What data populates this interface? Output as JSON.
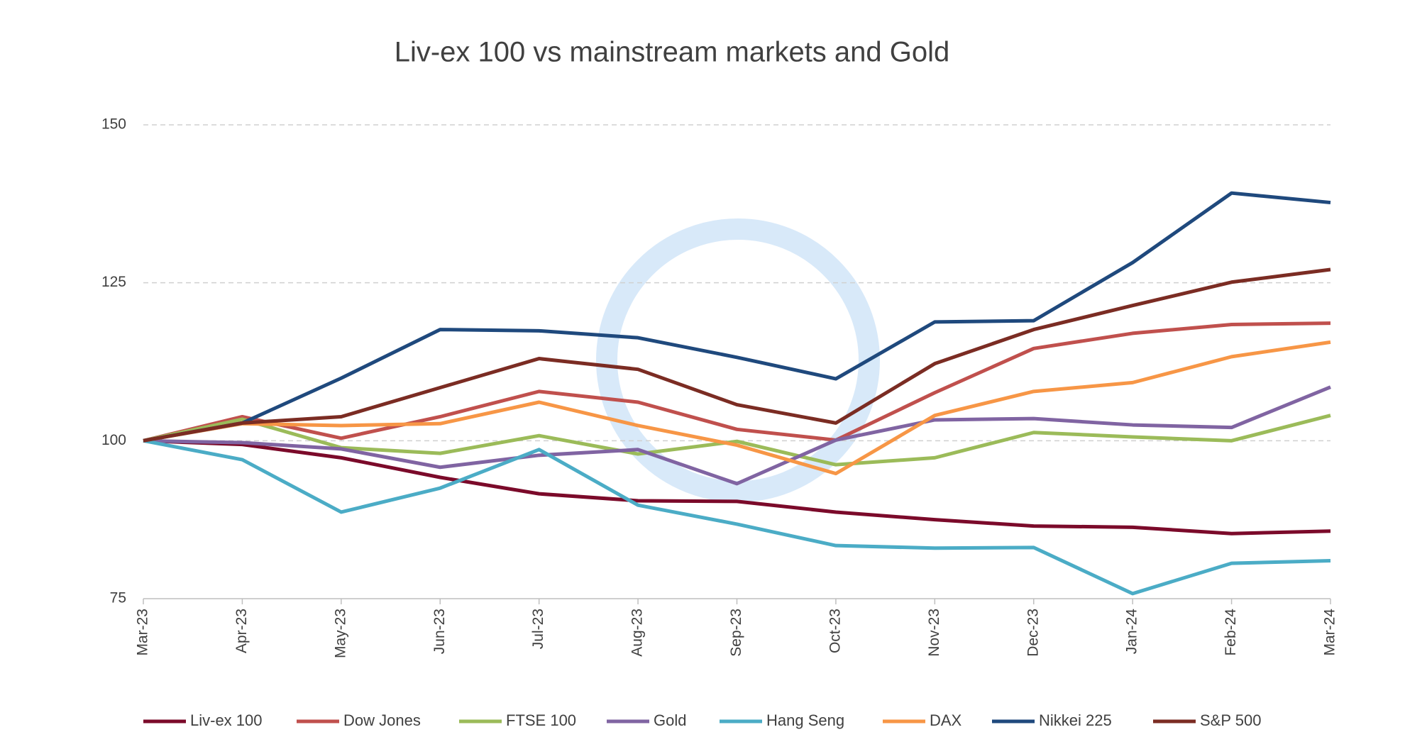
{
  "chart_data": {
    "type": "line",
    "title": "Liv-ex 100 vs mainstream markets and Gold",
    "categories": [
      "Mar-23",
      "Apr-23",
      "May-23",
      "Jun-23",
      "Jul-23",
      "Aug-23",
      "Sep-23",
      "Oct-23",
      "Nov-23",
      "Dec-23",
      "Jan-24",
      "Feb-24",
      "Mar-24"
    ],
    "ylim": [
      75,
      150
    ],
    "yticks": [
      75,
      100,
      125,
      150
    ],
    "grid": true,
    "legend": "bottom",
    "series": [
      {
        "name": "Liv-ex 100",
        "color": "#7b0a2a",
        "values": [
          100,
          99.4,
          97.3,
          94.2,
          91.6,
          90.5,
          90.4,
          88.7,
          87.5,
          86.5,
          86.3,
          85.3,
          85.7
        ]
      },
      {
        "name": "Dow Jones",
        "color": "#c0504d",
        "values": [
          100,
          103.8,
          100.4,
          103.8,
          107.8,
          106.1,
          101.8,
          100.1,
          107.6,
          114.6,
          117.0,
          118.4,
          118.6
        ]
      },
      {
        "name": "FTSE 100",
        "color": "#9bbb59",
        "values": [
          100,
          103.4,
          98.9,
          98.0,
          100.8,
          97.9,
          99.9,
          96.2,
          97.3,
          101.3,
          100.6,
          100.0,
          104.0
        ]
      },
      {
        "name": "Gold",
        "color": "#8064a2",
        "values": [
          100,
          99.7,
          98.7,
          95.8,
          97.7,
          98.6,
          93.2,
          100.1,
          103.3,
          103.5,
          102.5,
          102.1,
          108.5
        ]
      },
      {
        "name": "Hang Seng",
        "color": "#4bacc6",
        "values": [
          100,
          97.0,
          88.7,
          92.5,
          98.6,
          89.8,
          86.8,
          83.4,
          83.0,
          83.1,
          75.8,
          80.6,
          81.0
        ]
      },
      {
        "name": "DAX",
        "color": "#f79646",
        "values": [
          100,
          102.7,
          102.4,
          102.7,
          106.1,
          102.4,
          99.3,
          94.8,
          104.0,
          107.8,
          109.2,
          113.3,
          115.6
        ]
      },
      {
        "name": "Nikkei 225",
        "color": "#1f497d",
        "values": [
          100,
          102.8,
          109.9,
          117.6,
          117.4,
          116.3,
          113.2,
          109.8,
          118.8,
          119.0,
          128.2,
          139.2,
          137.7
        ]
      },
      {
        "name": "S&P 500",
        "color": "#7b2c23",
        "values": [
          100,
          102.8,
          103.8,
          108.4,
          113.0,
          111.3,
          105.7,
          102.8,
          112.2,
          117.6,
          121.4,
          125.1,
          127.1
        ]
      }
    ]
  }
}
